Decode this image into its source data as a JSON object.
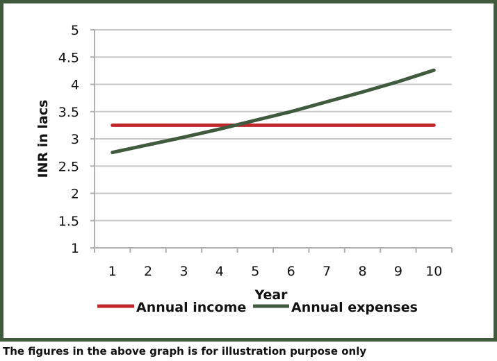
{
  "chart_data": {
    "type": "line",
    "title": "",
    "xlabel": "Year",
    "ylabel": "INR in lacs",
    "categories": [
      1,
      2,
      3,
      4,
      5,
      6,
      7,
      8,
      9,
      10
    ],
    "ylim": [
      1,
      5
    ],
    "yticks": [
      "1",
      "1.5",
      "2",
      "2.5",
      "3",
      "3.5",
      "4",
      "4.5",
      "5"
    ],
    "grid": true,
    "legend_position": "bottom",
    "series": [
      {
        "name": "Annual income",
        "color": "#c0272d",
        "values": [
          3.25,
          3.25,
          3.25,
          3.25,
          3.25,
          3.25,
          3.25,
          3.25,
          3.25,
          3.25
        ]
      },
      {
        "name": "Annual expenses",
        "color": "#3f5a3d",
        "values": [
          2.75,
          2.89,
          3.03,
          3.18,
          3.34,
          3.5,
          3.68,
          3.86,
          4.05,
          4.26
        ]
      }
    ]
  },
  "footnote": "The figures in the above graph is for illustration purpose only"
}
